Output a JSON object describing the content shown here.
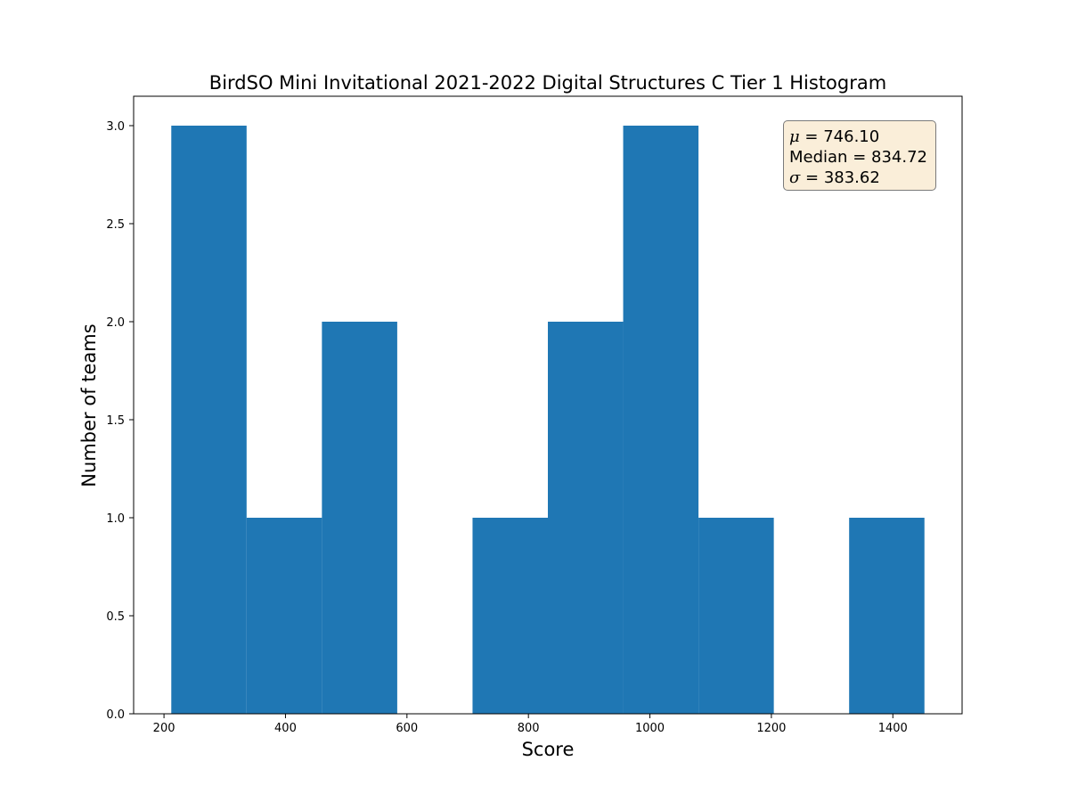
{
  "chart_data": {
    "type": "bar",
    "title": "BirdSO Mini Invitational 2021-2022 Digital Structures C Tier 1 Histogram",
    "xlabel": "Score",
    "ylabel": "Number of teams",
    "bins": [
      {
        "x0": 212,
        "x1": 336,
        "count": 3
      },
      {
        "x0": 336,
        "x1": 460,
        "count": 1
      },
      {
        "x0": 460,
        "x1": 584,
        "count": 2
      },
      {
        "x0": 584,
        "x1": 708,
        "count": 0
      },
      {
        "x0": 708,
        "x1": 832,
        "count": 1
      },
      {
        "x0": 832,
        "x1": 956,
        "count": 2
      },
      {
        "x0": 956,
        "x1": 1080,
        "count": 3
      },
      {
        "x0": 1080,
        "x1": 1204,
        "count": 1
      },
      {
        "x0": 1204,
        "x1": 1328,
        "count": 0
      },
      {
        "x0": 1328,
        "x1": 1452,
        "count": 1
      }
    ],
    "xlim": [
      150,
      1514
    ],
    "ylim": [
      0,
      3.15
    ],
    "xticks": [
      200,
      400,
      600,
      800,
      1000,
      1200,
      1400
    ],
    "xtick_labels": [
      "200",
      "400",
      "600",
      "800",
      "1000",
      "1200",
      "1400"
    ],
    "yticks": [
      0,
      0.5,
      1,
      1.5,
      2,
      2.5,
      3
    ],
    "ytick_labels": [
      "0.0",
      "0.5",
      "1.0",
      "1.5",
      "2.0",
      "2.5",
      "3.0"
    ],
    "bar_color": "#1f77b4",
    "grid": false,
    "annotation": {
      "mean_symbol": "μ",
      "mean_text": " = 746.10",
      "median_label": "Median",
      "median_text": " = 834.72",
      "sigma_symbol": "σ",
      "sigma_text": " = 383.62",
      "placement": "top-right",
      "background": "#f5deb3"
    }
  }
}
